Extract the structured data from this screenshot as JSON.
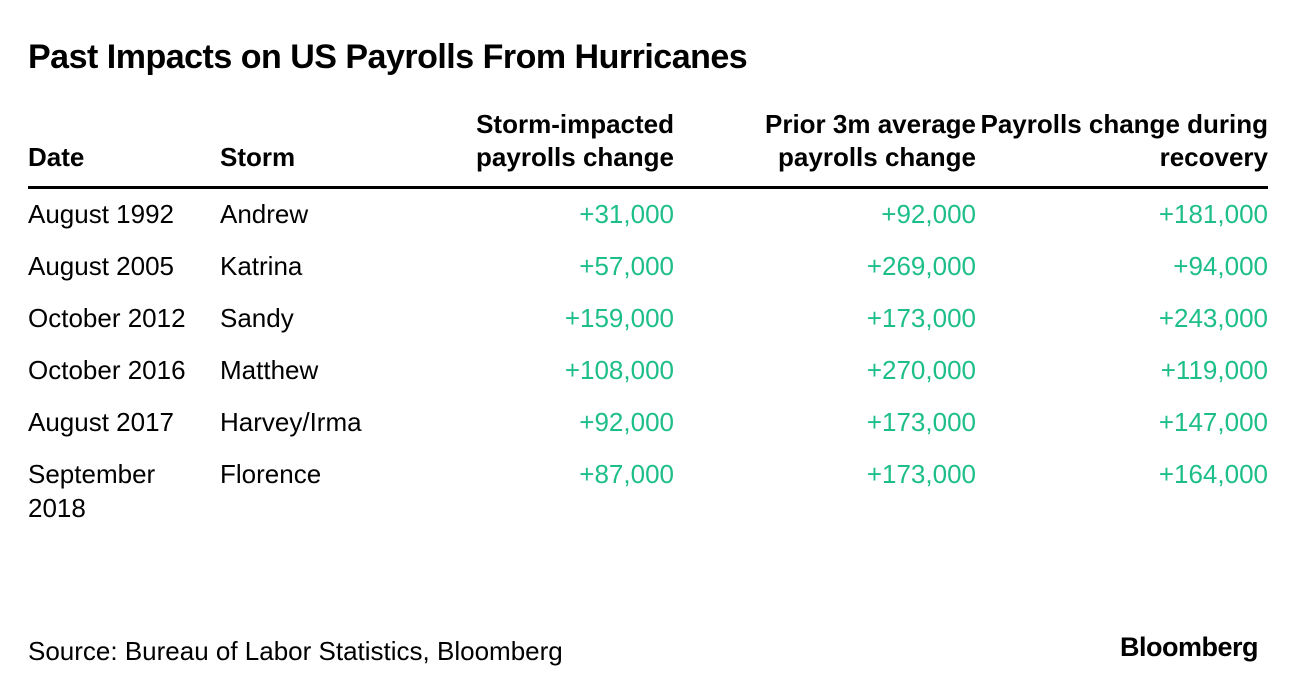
{
  "title": "Past Impacts on US Payrolls From Hurricanes",
  "colors": {
    "positive": "#1ebe8a",
    "text": "#000000"
  },
  "chart_data": {
    "type": "table",
    "title": "Past Impacts on US Payrolls From Hurricanes",
    "columns": [
      "Date",
      "Storm",
      "Storm-impacted payrolls change",
      "Prior 3m average payrolls change",
      "Payrolls change during recovery"
    ],
    "rows": [
      [
        "August 1992",
        "Andrew",
        "+31,000",
        "+92,000",
        "+181,000"
      ],
      [
        "August 2005",
        "Katrina",
        "+57,000",
        "+269,000",
        "+94,000"
      ],
      [
        "October 2012",
        "Sandy",
        "+159,000",
        "+173,000",
        "+243,000"
      ],
      [
        "October 2016",
        "Matthew",
        "+108,000",
        "+270,000",
        "+119,000"
      ],
      [
        "August 2017",
        "Harvey/Irma",
        "+92,000",
        "+173,000",
        "+147,000"
      ],
      [
        "September 2018",
        "Florence",
        "+87,000",
        "+173,000",
        "+164,000"
      ]
    ]
  },
  "source": "Source: Bureau of Labor Statistics, Bloomberg",
  "logo_text": "Bloomberg"
}
